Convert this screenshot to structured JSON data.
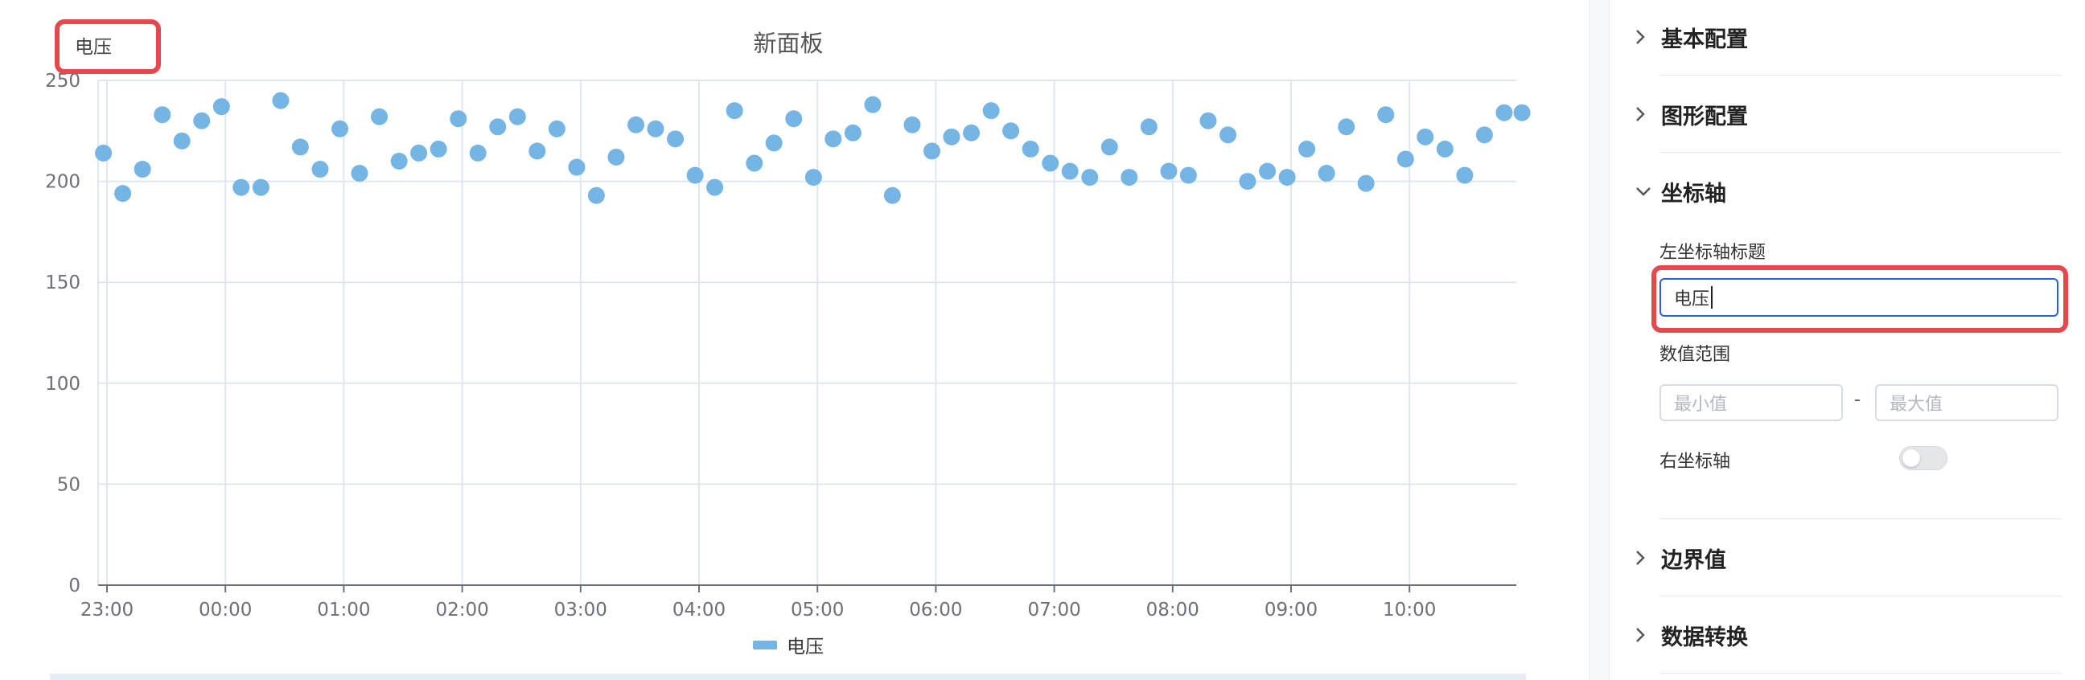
{
  "chart": {
    "title": "新面板",
    "y_axis_title": "电压",
    "legend_label": "电压",
    "color": "#74b5e6"
  },
  "chart_data": {
    "type": "scatter",
    "title": "新面板",
    "ylabel": "电压",
    "ylim": [
      0,
      250
    ],
    "yticks": [
      0,
      50,
      100,
      150,
      200,
      250
    ],
    "xticks": [
      "23:00",
      "00:00",
      "01:00",
      "02:00",
      "03:00",
      "04:00",
      "05:00",
      "06:00",
      "07:00",
      "08:00",
      "09:00",
      "10:00"
    ],
    "x_range_hours": [
      -0.03,
      11.95
    ],
    "grid": true,
    "legend_position": "bottom",
    "series": [
      {
        "name": "电压",
        "x_hours": [
          -0.03,
          0.133,
          0.3,
          0.467,
          0.633,
          0.8,
          0.967,
          1.133,
          1.3,
          1.467,
          1.633,
          1.8,
          1.967,
          2.133,
          2.3,
          2.467,
          2.633,
          2.8,
          2.967,
          3.133,
          3.3,
          3.467,
          3.633,
          3.8,
          3.967,
          4.133,
          4.3,
          4.467,
          4.633,
          4.8,
          4.967,
          5.133,
          5.3,
          5.467,
          5.633,
          5.8,
          5.967,
          6.133,
          6.3,
          6.467,
          6.633,
          6.8,
          6.967,
          7.133,
          7.3,
          7.467,
          7.633,
          7.8,
          7.967,
          8.133,
          8.3,
          8.467,
          8.633,
          8.8,
          8.967,
          9.133,
          9.3,
          9.467,
          9.633,
          9.8,
          9.967,
          10.133,
          10.3,
          10.467,
          10.633,
          10.8,
          10.967,
          11.133,
          11.3,
          11.467,
          11.633,
          11.8,
          11.95
        ],
        "y": [
          214,
          194,
          206,
          233,
          220,
          230,
          237,
          197,
          197,
          240,
          217,
          206,
          226,
          204,
          232,
          210,
          214,
          216,
          231,
          214,
          227,
          232,
          215,
          226,
          207,
          193,
          212,
          228,
          226,
          221,
          203,
          197,
          235,
          209,
          219,
          231,
          202,
          221,
          224,
          238,
          193,
          228,
          215,
          222,
          224,
          235,
          225,
          216,
          209,
          205,
          202,
          217,
          202,
          227,
          205,
          203,
          230,
          223,
          200,
          205,
          202,
          216,
          204,
          227,
          199,
          233,
          211,
          222,
          216,
          203,
          223,
          234,
          234
        ]
      }
    ]
  },
  "panel": {
    "sections": {
      "basic": "基本配置",
      "graph": "图形配置",
      "axis": "坐标轴",
      "boundary": "边界值",
      "transform": "数据转换"
    },
    "axis": {
      "left_title_label": "左坐标轴标题",
      "left_title_value": "电压",
      "range_label": "数值范围",
      "min_placeholder": "最小值",
      "max_placeholder": "最大值",
      "range_sep": "-",
      "right_axis_label": "右坐标轴",
      "right_axis_enabled": false
    }
  }
}
